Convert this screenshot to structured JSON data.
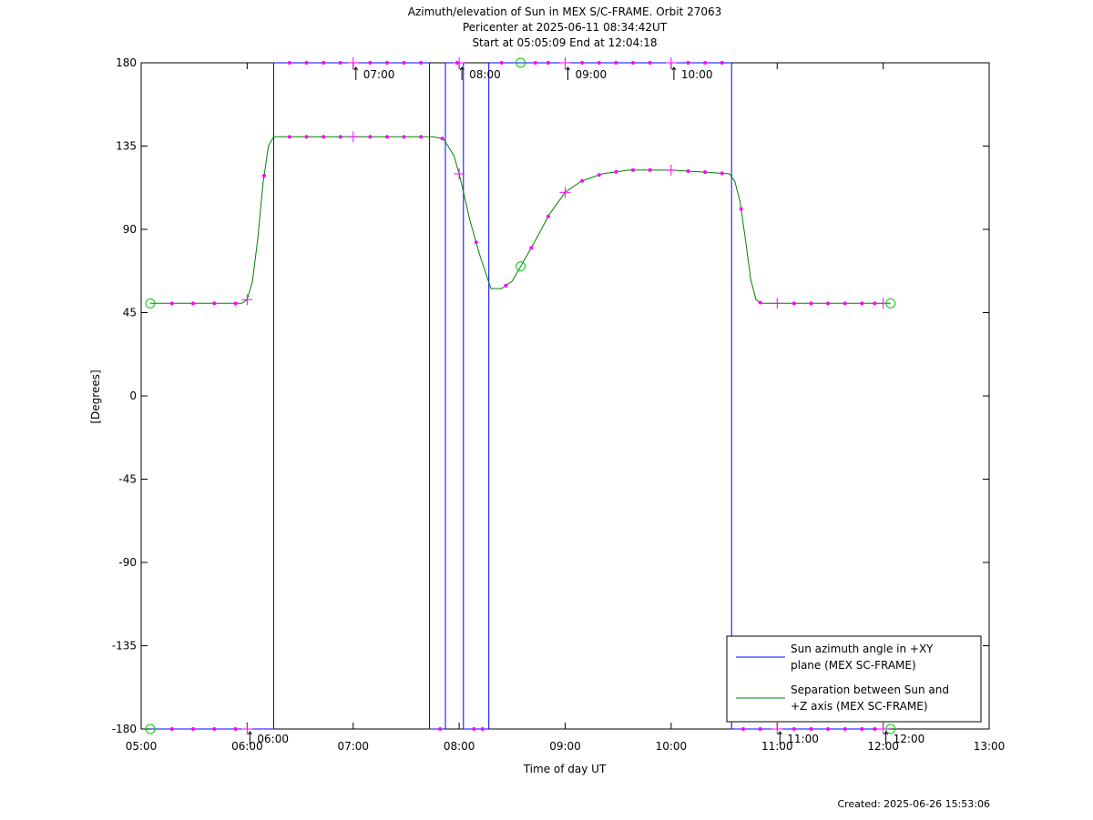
{
  "chart_data": {
    "type": "line",
    "title_lines": [
      "Azimuth/elevation of Sun in MEX S/C-FRAME.  Orbit 27063",
      "Pericenter at 2025-06-11 08:34:42UT",
      "Start at 05:05:09 End at 12:04:18"
    ],
    "xlabel": "Time of day UT",
    "ylabel": "[Degrees]",
    "xlim": [
      5.0,
      13.0
    ],
    "ylim": [
      -180,
      180
    ],
    "x_ticks": [
      5,
      6,
      7,
      8,
      9,
      10,
      11,
      12,
      13
    ],
    "x_tick_labels": [
      "05:00",
      "06:00",
      "07:00",
      "08:00",
      "09:00",
      "10:00",
      "11:00",
      "12:00",
      "13:00"
    ],
    "y_ticks": [
      180,
      135,
      90,
      45,
      0,
      -45,
      -90,
      -135,
      -180
    ],
    "y_tick_labels": [
      "180",
      "135",
      "90",
      "45",
      "0",
      "-45",
      "-90",
      "-135",
      "-180"
    ],
    "hour_annotations": [
      {
        "label": "06:00",
        "x": 6.0,
        "y": -180
      },
      {
        "label": "07:00",
        "x": 7.0,
        "y": 180
      },
      {
        "label": "08:00",
        "x": 8.0,
        "y": 180
      },
      {
        "label": "09:00",
        "x": 9.0,
        "y": 180
      },
      {
        "label": "10:00",
        "x": 10.0,
        "y": 180
      },
      {
        "label": "11:00",
        "x": 11.0,
        "y": -180
      },
      {
        "label": "12:00",
        "x": 12.0,
        "y": -180
      }
    ],
    "legend": {
      "position": "bottom-right",
      "entries": [
        {
          "lines": [
            "Sun azimuth angle in +XY",
            "plane (MEX SC-FRAME)"
          ],
          "color": "#0000ff"
        },
        {
          "lines": [
            "Separation between Sun and",
            "+Z axis (MEX SC-FRAME)"
          ],
          "color": "#008000"
        }
      ]
    },
    "series": [
      {
        "name": "Sun azimuth angle in +XY plane (MEX SC-FRAME)",
        "color": "#0000ff",
        "x": [
          5.086,
          6.25,
          6.25,
          7.72,
          7.72,
          7.87,
          7.87,
          8.04,
          8.04,
          8.28,
          8.28,
          10.57,
          10.57,
          12.07
        ],
        "y": [
          -180,
          -180,
          180,
          180,
          -180,
          -180,
          180,
          180,
          -180,
          -180,
          180,
          180,
          -180,
          -180
        ]
      },
      {
        "name": "Separation between Sun and +Z axis (MEX SC-FRAME)",
        "color": "#008000",
        "x": [
          5.086,
          5.5,
          5.95,
          6.0,
          6.05,
          6.1,
          6.15,
          6.2,
          6.25,
          6.5,
          7.0,
          7.5,
          7.75,
          7.85,
          7.95,
          8.0,
          8.05,
          8.1,
          8.2,
          8.3,
          8.4,
          8.5,
          8.58,
          8.7,
          8.85,
          9.0,
          9.15,
          9.35,
          9.6,
          9.8,
          10.0,
          10.3,
          10.55,
          10.6,
          10.65,
          10.7,
          10.75,
          10.8,
          10.85,
          11.0,
          11.5,
          12.07
        ],
        "y": [
          50,
          50,
          50,
          52,
          62,
          85,
          115,
          135,
          140,
          140,
          140,
          140,
          140,
          139,
          130,
          120,
          108,
          95,
          75,
          58,
          58,
          62,
          70,
          82,
          98,
          110,
          116,
          120,
          122,
          122,
          122,
          121,
          120,
          116,
          105,
          85,
          63,
          52,
          50,
          50,
          50,
          50
        ]
      }
    ],
    "markers": {
      "color": "#ff00ff",
      "circle_color": "#00cc00",
      "azimuth_dot_times": [
        5.29,
        5.49,
        5.69,
        5.89,
        6.4,
        6.56,
        6.72,
        6.88,
        7.16,
        7.32,
        7.48,
        7.64,
        7.82,
        7.98,
        8.14,
        8.22,
        8.4,
        8.72,
        8.84,
        9.16,
        9.32,
        9.48,
        9.64,
        9.8,
        10.16,
        10.32,
        10.48,
        10.68,
        10.84,
        11.16,
        11.32,
        11.48,
        11.64,
        11.8,
        11.92
      ],
      "separation_dot_times": [
        5.29,
        5.49,
        5.69,
        5.89,
        6.16,
        6.4,
        6.56,
        6.72,
        6.88,
        7.16,
        7.32,
        7.48,
        7.64,
        7.84,
        8.16,
        8.44,
        8.68,
        8.84,
        9.16,
        9.32,
        9.48,
        9.64,
        9.8,
        10.16,
        10.32,
        10.48,
        10.66,
        10.84,
        11.16,
        11.32,
        11.48,
        11.64,
        11.8,
        11.92
      ],
      "hour_plus_times": [
        6,
        7,
        8,
        9,
        10,
        11,
        12
      ],
      "circle_times": [
        5.086,
        8.58,
        12.07
      ]
    }
  },
  "footer": {
    "created": "Created: 2025-06-26 15:53:06"
  }
}
